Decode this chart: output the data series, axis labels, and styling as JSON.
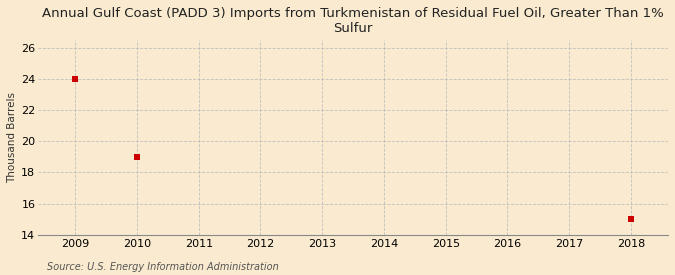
{
  "title": "Annual Gulf Coast (PADD 3) Imports from Turkmenistan of Residual Fuel Oil, Greater Than 1%\nSulfur",
  "ylabel": "Thousand Barrels",
  "source": "Source: U.S. Energy Information Administration",
  "x_data": [
    2009,
    2010,
    2018
  ],
  "y_data": [
    24,
    19,
    15
  ],
  "xlim": [
    2008.4,
    2018.6
  ],
  "ylim": [
    14,
    26.5
  ],
  "yticks": [
    14,
    16,
    18,
    20,
    22,
    24,
    26
  ],
  "xticks": [
    2009,
    2010,
    2011,
    2012,
    2013,
    2014,
    2015,
    2016,
    2017,
    2018
  ],
  "marker_color": "#cc0000",
  "marker": "s",
  "marker_size": 4,
  "bg_color": "#faebd0",
  "plot_bg_color": "#faebd0",
  "grid_color": "#bbbbbb",
  "title_fontsize": 9.5,
  "axis_fontsize": 8,
  "ylabel_fontsize": 7.5,
  "source_fontsize": 7
}
